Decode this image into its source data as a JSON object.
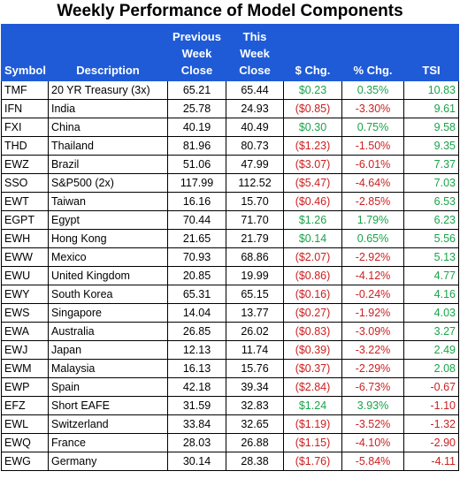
{
  "title": "Weekly Performance of Model Components",
  "headers": {
    "symbol": "Symbol",
    "description": "Description",
    "prev": [
      "Previous",
      "Week",
      "Close"
    ],
    "this": [
      "This",
      "Week",
      "Close"
    ],
    "chg": "$ Chg.",
    "pct": "% Chg.",
    "tsi": "TSI"
  },
  "colors": {
    "header_bg": "#1f5bd6",
    "positive": "#1aa34a",
    "negative": "#cc2020"
  },
  "rows": [
    {
      "symbol": "TMF",
      "description": "20 YR Treasury (3x)",
      "prev": "65.21",
      "this": "65.44",
      "chg": "$0.23",
      "pct": "0.35%",
      "tsi": "10.83"
    },
    {
      "symbol": "IFN",
      "description": "India",
      "prev": "25.78",
      "this": "24.93",
      "chg": "($0.85)",
      "pct": "-3.30%",
      "tsi": "9.61"
    },
    {
      "symbol": "FXI",
      "description": "China",
      "prev": "40.19",
      "this": "40.49",
      "chg": "$0.30",
      "pct": "0.75%",
      "tsi": "9.58"
    },
    {
      "symbol": "THD",
      "description": "Thailand",
      "prev": "81.96",
      "this": "80.73",
      "chg": "($1.23)",
      "pct": "-1.50%",
      "tsi": "9.35"
    },
    {
      "symbol": "EWZ",
      "description": "Brazil",
      "prev": "51.06",
      "this": "47.99",
      "chg": "($3.07)",
      "pct": "-6.01%",
      "tsi": "7.37"
    },
    {
      "symbol": "SSO",
      "description": "S&P500 (2x)",
      "prev": "117.99",
      "this": "112.52",
      "chg": "($5.47)",
      "pct": "-4.64%",
      "tsi": "7.03"
    },
    {
      "symbol": "EWT",
      "description": "Taiwan",
      "prev": "16.16",
      "this": "15.70",
      "chg": "($0.46)",
      "pct": "-2.85%",
      "tsi": "6.53"
    },
    {
      "symbol": "EGPT",
      "description": "Egypt",
      "prev": "70.44",
      "this": "71.70",
      "chg": "$1.26",
      "pct": "1.79%",
      "tsi": "6.23"
    },
    {
      "symbol": "EWH",
      "description": "Hong Kong",
      "prev": "21.65",
      "this": "21.79",
      "chg": "$0.14",
      "pct": "0.65%",
      "tsi": "5.56"
    },
    {
      "symbol": "EWW",
      "description": "Mexico",
      "prev": "70.93",
      "this": "68.86",
      "chg": "($2.07)",
      "pct": "-2.92%",
      "tsi": "5.13"
    },
    {
      "symbol": "EWU",
      "description": "United Kingdom",
      "prev": "20.85",
      "this": "19.99",
      "chg": "($0.86)",
      "pct": "-4.12%",
      "tsi": "4.77"
    },
    {
      "symbol": "EWY",
      "description": "South Korea",
      "prev": "65.31",
      "this": "65.15",
      "chg": "($0.16)",
      "pct": "-0.24%",
      "tsi": "4.16"
    },
    {
      "symbol": "EWS",
      "description": "Singapore",
      "prev": "14.04",
      "this": "13.77",
      "chg": "($0.27)",
      "pct": "-1.92%",
      "tsi": "4.03"
    },
    {
      "symbol": "EWA",
      "description": "Australia",
      "prev": "26.85",
      "this": "26.02",
      "chg": "($0.83)",
      "pct": "-3.09%",
      "tsi": "3.27"
    },
    {
      "symbol": "EWJ",
      "description": "Japan",
      "prev": "12.13",
      "this": "11.74",
      "chg": "($0.39)",
      "pct": "-3.22%",
      "tsi": "2.49"
    },
    {
      "symbol": "EWM",
      "description": "Malaysia",
      "prev": "16.13",
      "this": "15.76",
      "chg": "($0.37)",
      "pct": "-2.29%",
      "tsi": "2.08"
    },
    {
      "symbol": "EWP",
      "description": "Spain",
      "prev": "42.18",
      "this": "39.34",
      "chg": "($2.84)",
      "pct": "-6.73%",
      "tsi": "-0.67"
    },
    {
      "symbol": "EFZ",
      "description": "Short EAFE",
      "prev": "31.59",
      "this": "32.83",
      "chg": "$1.24",
      "pct": "3.93%",
      "tsi": "-1.10"
    },
    {
      "symbol": "EWL",
      "description": "Switzerland",
      "prev": "33.84",
      "this": "32.65",
      "chg": "($1.19)",
      "pct": "-3.52%",
      "tsi": "-1.32"
    },
    {
      "symbol": "EWQ",
      "description": "France",
      "prev": "28.03",
      "this": "26.88",
      "chg": "($1.15)",
      "pct": "-4.10%",
      "tsi": "-2.90"
    },
    {
      "symbol": "EWG",
      "description": "Germany",
      "prev": "30.14",
      "this": "28.38",
      "chg": "($1.76)",
      "pct": "-5.84%",
      "tsi": "-4.11"
    }
  ]
}
